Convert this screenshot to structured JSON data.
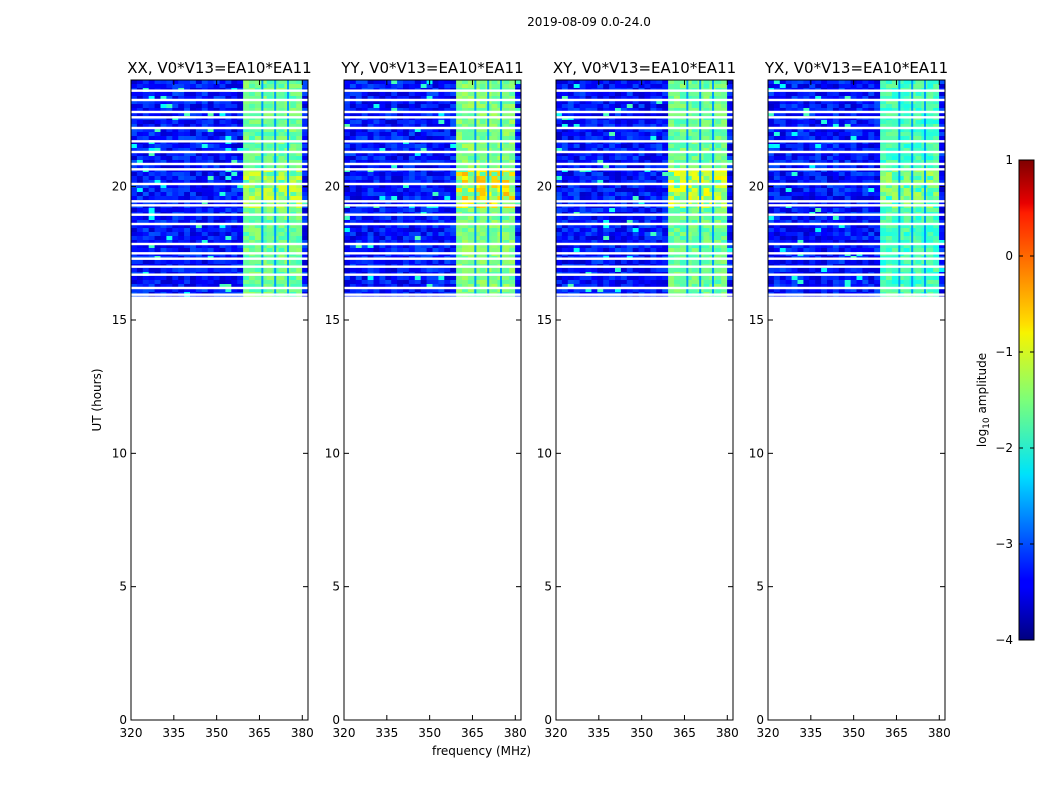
{
  "chart_data": {
    "type": "heatmap",
    "suptitle": "2019-08-09 0.0-24.0",
    "xlabel": "frequency (MHz)",
    "ylabel": "UT (hours)",
    "xlim": [
      320,
      382
    ],
    "ylim": [
      0,
      24
    ],
    "xticks": [
      "320",
      "335",
      "350",
      "365",
      "380"
    ],
    "yticks": [
      "0",
      "5",
      "10",
      "15",
      "20"
    ],
    "data_ut_range": [
      15.9,
      24
    ],
    "rfi_band_mhz": [
      360,
      379
    ],
    "blank_rows_ut": [
      15.95,
      16.2,
      16.7,
      17.0,
      17.3,
      17.5,
      17.85,
      18.6,
      18.95,
      19.3,
      19.45,
      20.1,
      20.65,
      20.85,
      21.3,
      21.7,
      22.2,
      22.6,
      22.8,
      23.25,
      23.6
    ],
    "panels": [
      {
        "title": "XX, V0*V13=EA10*EA11",
        "rfi_level": -1.6,
        "hot_level": -1.2
      },
      {
        "title": "YY, V0*V13=EA10*EA11",
        "rfi_level": -1.5,
        "hot_level": -0.7
      },
      {
        "title": "XY, V0*V13=EA10*EA11",
        "rfi_level": -1.6,
        "hot_level": -1.0
      },
      {
        "title": "YX, V0*V13=EA10*EA11",
        "rfi_level": -1.8,
        "hot_level": -1.4
      }
    ],
    "colorbar": {
      "label_prefix": "log",
      "label_sub": "10",
      "label_suffix": " amplitude",
      "range": [
        -4,
        1
      ],
      "ticks": [
        "1",
        "0",
        "−1",
        "−2",
        "−3",
        "−4"
      ],
      "cmap": "jet"
    },
    "background_level": -3.3
  }
}
